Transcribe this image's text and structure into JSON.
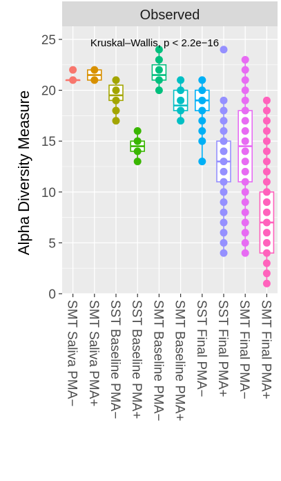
{
  "chart_data": {
    "type": "box",
    "facet_title": "Observed",
    "ylabel": "Alpha Diversity Measure",
    "annotation": "Kruskal–Wallis, p < 2.2e−16",
    "ylim": [
      0,
      25
    ],
    "yticks": [
      0,
      5,
      10,
      15,
      20,
      25
    ],
    "grid": true,
    "legend": "none",
    "categories": [
      "SMT Saliva PMA−",
      "SMT Saliva PMA+",
      "SST Baseline PMA−",
      "SST Baseline PMA+",
      "SMT Baseline PMA−",
      "SMT Baseline PMA+",
      "SST Final PMA−",
      "SST Final PMA+",
      "SMT Final PMA−",
      "SMT Final PMA+"
    ],
    "colors": [
      "#F8766D",
      "#D89000",
      "#A3A500",
      "#39B600",
      "#00BF7D",
      "#00BFC4",
      "#00B0F6",
      "#9590FF",
      "#E76BF3",
      "#FF62BC"
    ],
    "boxes": [
      {
        "min": 21,
        "q1": 21,
        "median": 21,
        "q3": 21,
        "max": 21,
        "points": [
          21,
          22
        ]
      },
      {
        "min": 21,
        "q1": 21,
        "median": 21.5,
        "q3": 22,
        "max": 22,
        "points": [
          21,
          22
        ]
      },
      {
        "min": 17,
        "q1": 19,
        "median": 19.5,
        "q3": 20.5,
        "max": 21,
        "points": [
          17,
          18,
          19,
          20,
          21
        ]
      },
      {
        "min": 13,
        "q1": 14,
        "median": 14.5,
        "q3": 15,
        "max": 16,
        "points": [
          13,
          14,
          15,
          16
        ]
      },
      {
        "min": 20,
        "q1": 21,
        "median": 21.5,
        "q3": 22.5,
        "max": 24,
        "points": [
          20,
          21,
          22,
          23,
          24
        ]
      },
      {
        "min": 17,
        "q1": 18,
        "median": 18.5,
        "q3": 20,
        "max": 21,
        "points": [
          17,
          18,
          19,
          20,
          21
        ]
      },
      {
        "min": 13,
        "q1": 18,
        "median": 19,
        "q3": 20,
        "max": 21,
        "points": [
          13,
          15,
          16,
          17,
          18,
          19,
          20,
          21
        ]
      },
      {
        "min": 4,
        "q1": 11,
        "median": 13,
        "q3": 15,
        "max": 19,
        "points": [
          4,
          5,
          6,
          7,
          8,
          9,
          10,
          11,
          12,
          13,
          14,
          15,
          16,
          17,
          18,
          19,
          24
        ]
      },
      {
        "min": 4,
        "q1": 11,
        "median": 14.5,
        "q3": 18,
        "max": 23,
        "points": [
          4,
          5,
          6,
          7,
          8,
          9,
          10,
          11,
          12,
          13,
          14,
          15,
          16,
          17,
          18,
          19,
          20,
          21,
          22,
          23
        ]
      },
      {
        "min": 1,
        "q1": 4,
        "median": 7,
        "q3": 10,
        "max": 19,
        "points": [
          1,
          2,
          3,
          4,
          5,
          6,
          7,
          8,
          9,
          10,
          11,
          12,
          13,
          14,
          15,
          16,
          17,
          18,
          19
        ]
      }
    ]
  }
}
